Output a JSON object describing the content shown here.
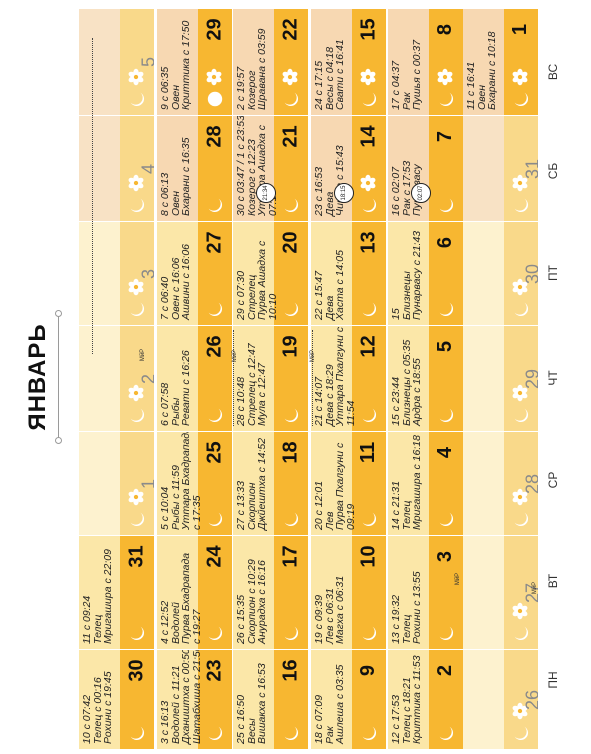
{
  "title": "ЯНВАРЬ",
  "weekdays": [
    "ПН",
    "ВТ",
    "СР",
    "ЧТ",
    "ПТ",
    "СБ",
    "ВС"
  ],
  "colors": {
    "band_strong": "#f7b731",
    "band_light": "#f9d98a",
    "cell_light": "#fbe7a8",
    "cell_pale": "#fdf2cf",
    "weekend": "#f7d8b2",
    "weekend_pale": "#f8e2c5"
  },
  "rows": [
    [
      {
        "num": "26",
        "muted": true,
        "lines": []
      },
      {
        "num": "27",
        "muted": true,
        "lines": []
      },
      {
        "num": "28",
        "muted": true,
        "lines": []
      },
      {
        "num": "29",
        "muted": true,
        "lines": []
      },
      {
        "num": "30",
        "muted": true,
        "lines": []
      },
      {
        "num": "31",
        "muted": true,
        "lines": []
      },
      {
        "num": "1",
        "lines": [
          "11 с 16:41",
          "Овен",
          "Бхарани с 10:18"
        ]
      }
    ],
    [
      {
        "num": "2",
        "lines": [
          "12 с 17:53",
          "Телец с 18:21",
          "Криттика с 11:53"
        ]
      },
      {
        "num": "3",
        "lines": [
          "13 с 19:32",
          "Телец",
          "Рохини с 13:55"
        ]
      },
      {
        "num": "4",
        "lines": [
          "14 с 21:31",
          "Телец",
          "Мригашира с 16:18"
        ]
      },
      {
        "num": "5",
        "lines": [
          "15 с 23:44",
          "Близнецы с 05:35",
          "Ардра с 18:55"
        ]
      },
      {
        "num": "6",
        "lines": [
          "15",
          "Близнецы",
          "Пунарвасу с 21:43"
        ]
      },
      {
        "num": "7",
        "lines": [
          "16 с 02:07",
          "Рак с 17:53",
          "Пунарвасу"
        ]
      },
      {
        "num": "8",
        "lines": [
          "17 с 04:37",
          "Рак",
          "Пушья с 00:37"
        ]
      }
    ],
    [
      {
        "num": "9",
        "lines": [
          "18 с 07:09",
          "Рак",
          "Ашлеша с 03:35"
        ]
      },
      {
        "num": "10",
        "lines": [
          "19 с 09:39",
          "Лев с 06:31",
          "Магха с 06:31"
        ]
      },
      {
        "num": "11",
        "lines": [
          "20 с 12:01",
          "Лев",
          "Пурва Пхалгуни с",
          "09:19"
        ]
      },
      {
        "num": "12",
        "lines": [
          "21 с 14:07",
          "Дева с 18:29",
          "Уттара Пхалгуни с",
          "11:54"
        ]
      },
      {
        "num": "13",
        "lines": [
          "22 с 15:47",
          "Дева",
          "Хаста с 14:05"
        ]
      },
      {
        "num": "14",
        "lines": [
          "23 с 16:53",
          "Дева",
          "Читра с 15:43"
        ]
      },
      {
        "num": "15",
        "lines": [
          "24 с 17:15",
          "Весы с 04:18",
          "Свати с 16:41"
        ]
      }
    ],
    [
      {
        "num": "16",
        "lines": [
          "25 с 16:50",
          "Весы",
          "Вишакха с 16:53"
        ]
      },
      {
        "num": "17",
        "lines": [
          "26 с 15:35",
          "Скорпион с 10:29",
          "Анурадха с 16:16"
        ]
      },
      {
        "num": "18",
        "lines": [
          "27 с 13:33",
          "Скорпион",
          "Джйештха с 14:52"
        ]
      },
      {
        "num": "19",
        "lines": [
          "28 с 10:48",
          "Стрелец с 12:47",
          "Мула с 12:47"
        ]
      },
      {
        "num": "20",
        "lines": [
          "29 с 07:30",
          "Стрелец",
          "Пурва Ашадха с",
          "10:10"
        ]
      },
      {
        "num": "21",
        "lines": [
          "30 с 03:47 / 1 с 23:53",
          "Козерог с 12:23",
          "Уттара Ашадха с",
          "07:10"
        ]
      },
      {
        "num": "22",
        "lines": [
          "2 с 19:57",
          "Козерог",
          "Шравана с 03:59"
        ]
      }
    ],
    [
      {
        "num": "23",
        "lines": [
          "3 с 16:13",
          "Водолей с 11:21",
          "Дхаништха с 00:50 /",
          "Шатабхиша с 21:56"
        ]
      },
      {
        "num": "24",
        "lines": [
          "4 с 12:52",
          "Водолей",
          "Пурва Бхадрапада",
          "с 19:27"
        ]
      },
      {
        "num": "25",
        "lines": [
          "5 с 10:04",
          "Рыбы с 11:59",
          "Уттара Бхадрапада",
          "с 17:35"
        ]
      },
      {
        "num": "26",
        "lines": [
          "6 с 07:58",
          "Рыбы",
          "Ревати с 16:26"
        ]
      },
      {
        "num": "27",
        "lines": [
          "7 с 06:40",
          "Овен с 16:06",
          "Ашвини с 16:06"
        ]
      },
      {
        "num": "28",
        "lines": [
          "8 с 06:13",
          "Овен",
          "Бхарани с 16:35"
        ]
      },
      {
        "num": "29",
        "lines": [
          "9 с 06:35",
          "Овен",
          "Криттика с 17:50"
        ]
      }
    ],
    [
      {
        "num": "30",
        "lines": [
          "10 с 07:42",
          "Телец с 00:16",
          "Рохини с 19:45"
        ]
      },
      {
        "num": "31",
        "lines": [
          "11 с 09:24",
          "Телец",
          "Мригашира с 22:09"
        ]
      },
      {
        "num": "1",
        "muted": true,
        "lines": []
      },
      {
        "num": "2",
        "muted": true,
        "lines": []
      },
      {
        "num": "3",
        "muted": true,
        "lines": []
      },
      {
        "num": "4",
        "muted": true,
        "lines": []
      },
      {
        "num": "5",
        "muted": true,
        "lines": []
      }
    ]
  ],
  "badges": {
    "sat7": "02:07",
    "sat14": "18:15",
    "sat21": "21:34"
  },
  "tags": {
    "mr": "МйР"
  }
}
